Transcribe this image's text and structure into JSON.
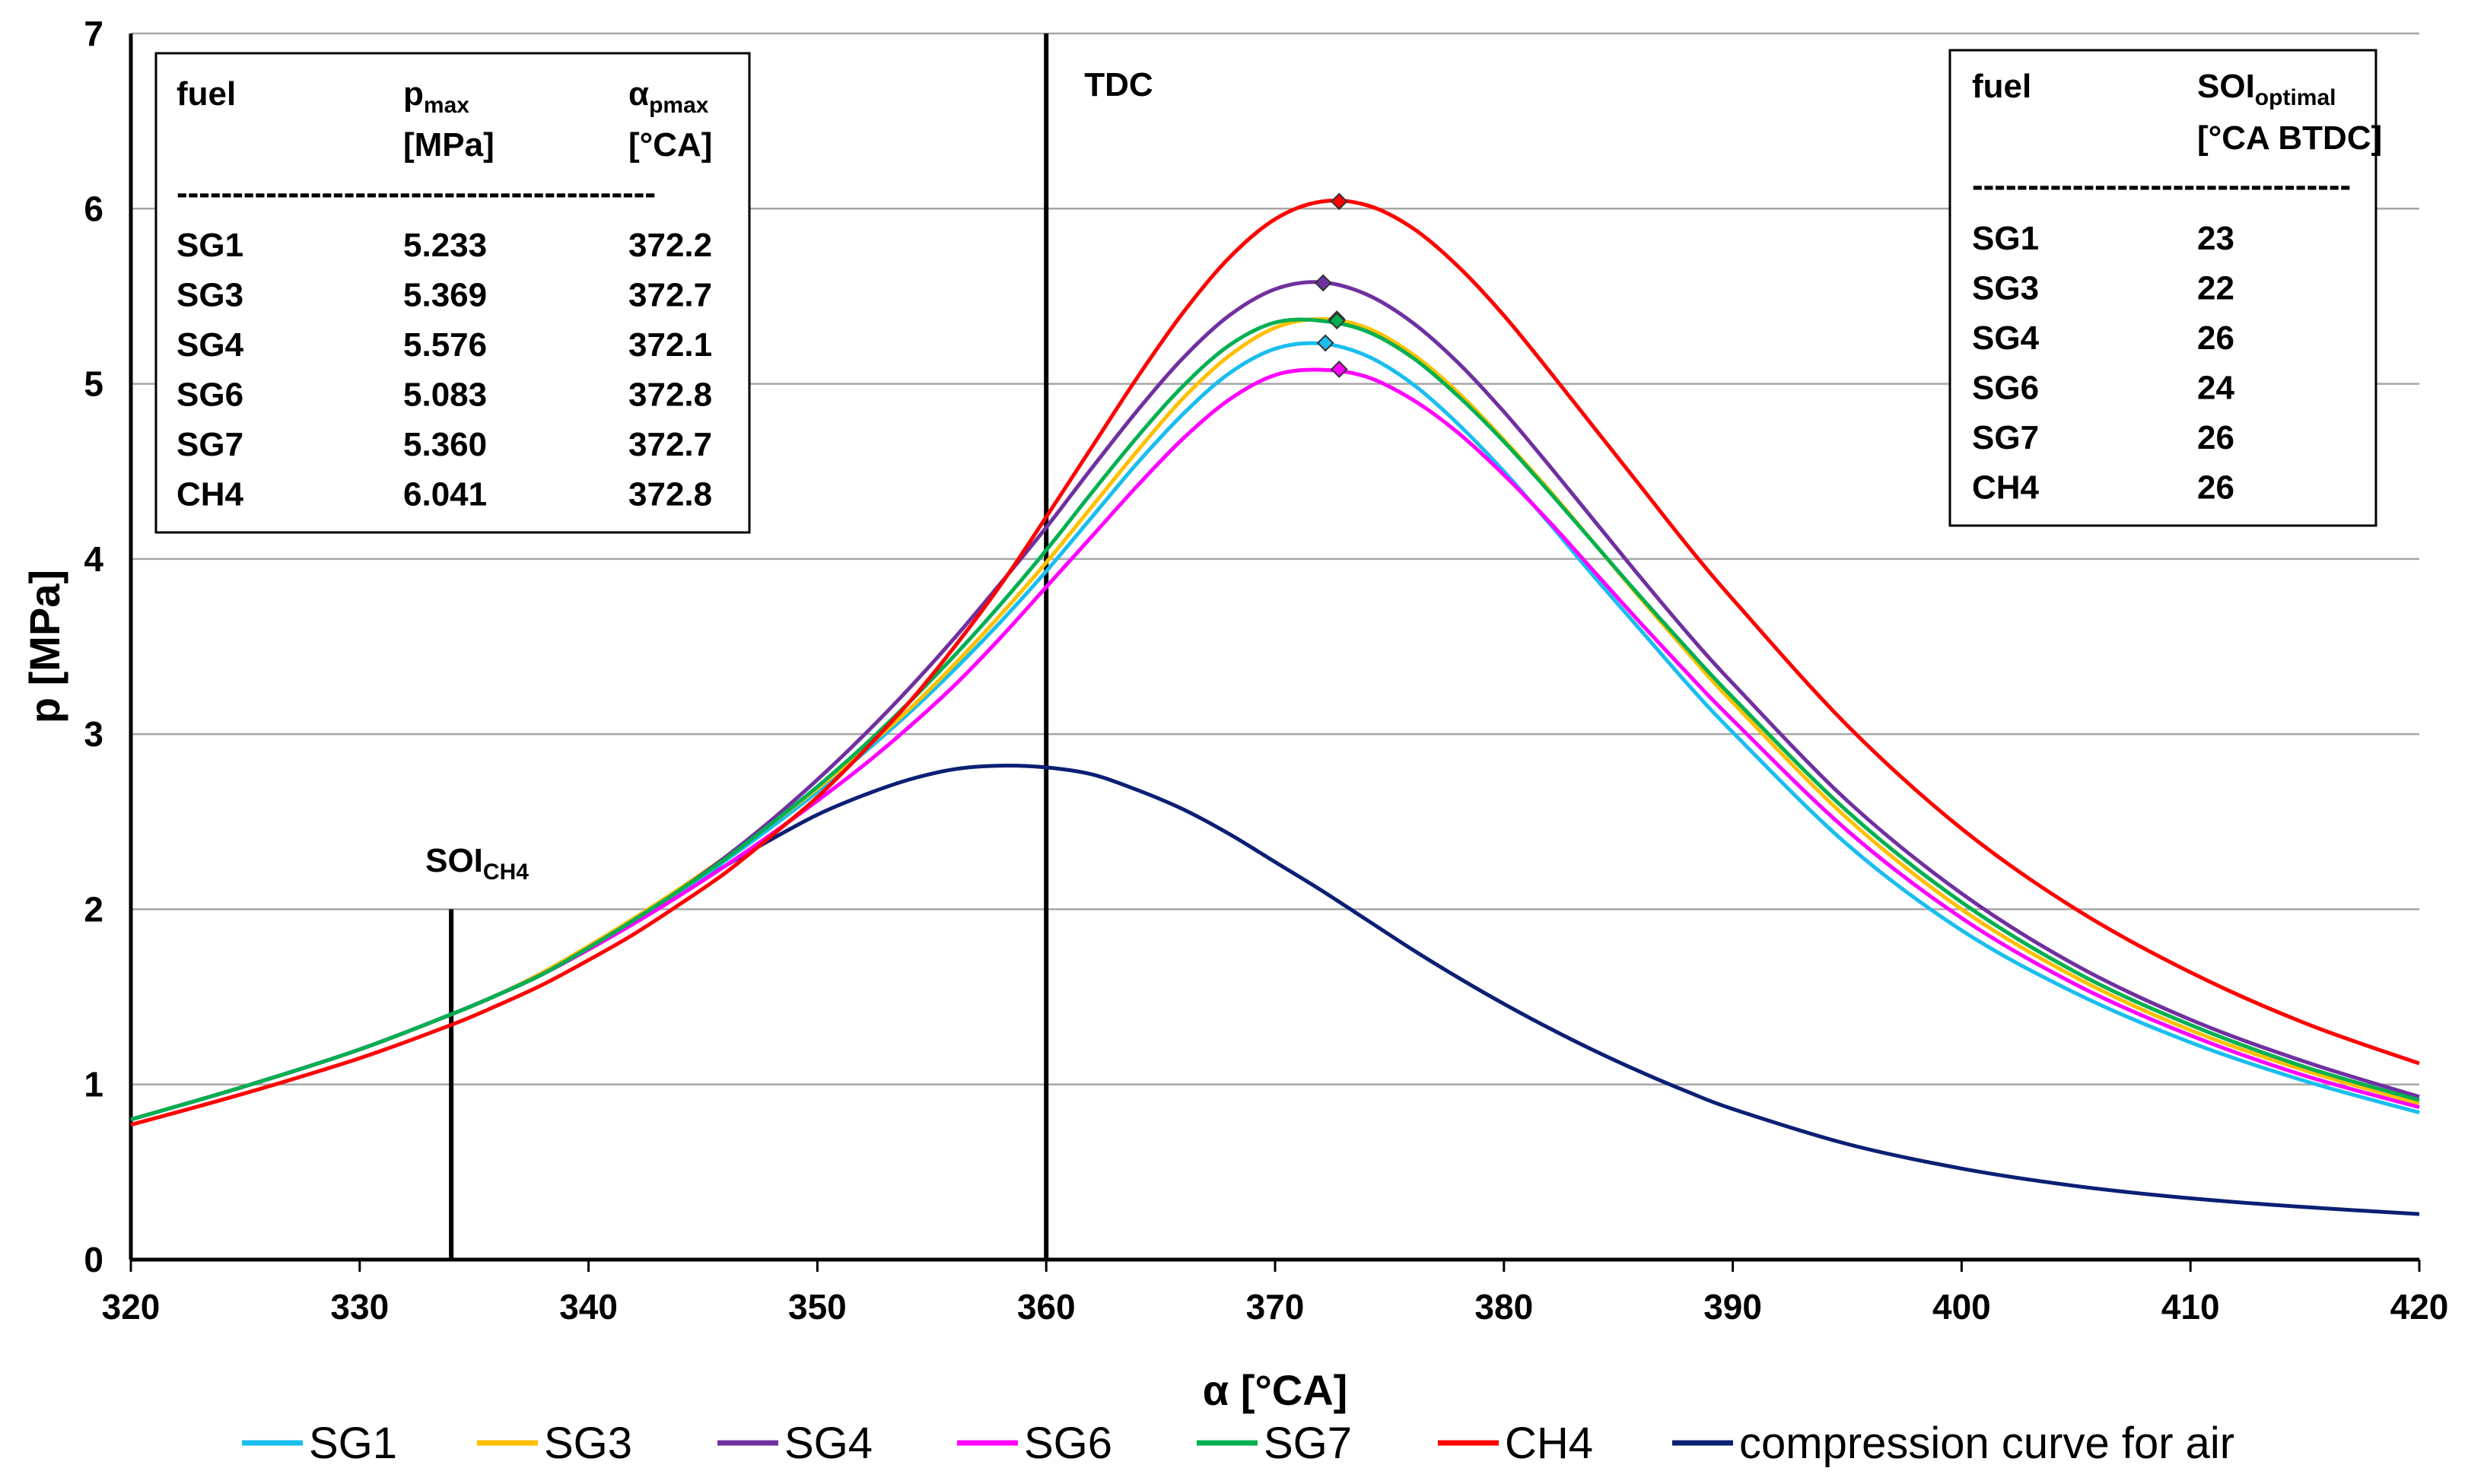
{
  "chart_data": {
    "type": "line",
    "xlabel": "α [°CA]",
    "ylabel": "p [MPa]",
    "xlim": [
      320,
      420
    ],
    "ylim": [
      0,
      7
    ],
    "xticks": [
      320,
      330,
      340,
      350,
      360,
      370,
      380,
      390,
      400,
      410,
      420
    ],
    "yticks": [
      0,
      1,
      2,
      3,
      4,
      5,
      6,
      7
    ],
    "grid": "horizontal",
    "x": [
      320,
      325,
      330,
      334,
      336,
      338,
      340,
      342,
      344,
      346,
      348,
      350,
      352,
      354,
      356,
      358,
      360,
      362,
      364,
      366,
      368,
      370,
      372,
      374,
      376,
      378,
      380,
      382,
      384,
      386,
      388,
      390,
      395,
      400,
      405,
      410,
      415,
      420
    ],
    "series": [
      {
        "name": "SG1",
        "color": "#19BEEF",
        "peak": {
          "x": 372.2,
          "y": 5.233
        },
        "values": [
          0.8,
          0.99,
          1.2,
          1.4,
          1.51,
          1.63,
          1.78,
          1.93,
          2.1,
          2.28,
          2.47,
          2.67,
          2.89,
          3.12,
          3.37,
          3.64,
          3.93,
          4.24,
          4.55,
          4.83,
          5.06,
          5.2,
          5.23,
          5.16,
          5.0,
          4.77,
          4.5,
          4.2,
          3.89,
          3.59,
          3.29,
          3.01,
          2.37,
          1.88,
          1.52,
          1.24,
          1.02,
          0.84
        ]
      },
      {
        "name": "SG3",
        "color": "#FFC000",
        "peak": {
          "x": 372.7,
          "y": 5.369
        },
        "values": [
          0.8,
          0.99,
          1.2,
          1.4,
          1.51,
          1.64,
          1.79,
          1.95,
          2.12,
          2.3,
          2.49,
          2.69,
          2.91,
          3.14,
          3.4,
          3.68,
          3.98,
          4.3,
          4.62,
          4.92,
          5.16,
          5.32,
          5.37,
          5.32,
          5.17,
          4.95,
          4.68,
          4.39,
          4.08,
          3.77,
          3.47,
          3.18,
          2.52,
          2.0,
          1.61,
          1.31,
          1.08,
          0.89
        ]
      },
      {
        "name": "SG4",
        "color": "#7030A0",
        "peak": {
          "x": 372.1,
          "y": 5.576
        },
        "values": [
          0.8,
          0.99,
          1.2,
          1.4,
          1.51,
          1.63,
          1.78,
          1.94,
          2.11,
          2.3,
          2.51,
          2.74,
          2.99,
          3.26,
          3.55,
          3.86,
          4.18,
          4.52,
          4.85,
          5.15,
          5.39,
          5.54,
          5.58,
          5.51,
          5.35,
          5.12,
          4.84,
          4.53,
          4.21,
          3.89,
          3.58,
          3.29,
          2.62,
          2.09,
          1.68,
          1.37,
          1.13,
          0.93
        ]
      },
      {
        "name": "SG6",
        "color": "#FF00FF",
        "peak": {
          "x": 372.8,
          "y": 5.083
        },
        "values": [
          0.8,
          0.99,
          1.2,
          1.4,
          1.51,
          1.63,
          1.77,
          1.92,
          2.08,
          2.25,
          2.43,
          2.62,
          2.82,
          3.04,
          3.28,
          3.55,
          3.84,
          4.13,
          4.42,
          4.69,
          4.91,
          5.05,
          5.08,
          5.04,
          4.91,
          4.72,
          4.48,
          4.21,
          3.92,
          3.63,
          3.35,
          3.08,
          2.45,
          1.95,
          1.57,
          1.28,
          1.05,
          0.87
        ]
      },
      {
        "name": "SG7",
        "color": "#00B050",
        "peak": {
          "x": 372.7,
          "y": 5.36
        },
        "values": [
          0.8,
          0.99,
          1.2,
          1.4,
          1.51,
          1.63,
          1.78,
          1.94,
          2.11,
          2.29,
          2.49,
          2.7,
          2.93,
          3.18,
          3.45,
          3.74,
          4.05,
          4.38,
          4.7,
          4.99,
          5.22,
          5.35,
          5.36,
          5.3,
          5.15,
          4.93,
          4.67,
          4.38,
          4.08,
          3.78,
          3.49,
          3.21,
          2.56,
          2.04,
          1.64,
          1.34,
          1.1,
          0.91
        ]
      },
      {
        "name": "CH4",
        "color": "#FF0000",
        "peak": {
          "x": 372.8,
          "y": 6.041
        },
        "values": [
          0.77,
          0.95,
          1.15,
          1.34,
          1.45,
          1.57,
          1.71,
          1.86,
          2.03,
          2.21,
          2.42,
          2.64,
          2.9,
          3.18,
          3.5,
          3.85,
          4.24,
          4.64,
          5.04,
          5.41,
          5.72,
          5.94,
          6.04,
          6.02,
          5.89,
          5.67,
          5.39,
          5.07,
          4.74,
          4.41,
          4.08,
          3.77,
          3.05,
          2.46,
          2.0,
          1.64,
          1.35,
          1.12
        ]
      },
      {
        "name": "compression curve for air",
        "color": "#0B1F74",
        "peak": null,
        "values": [
          0.8,
          0.99,
          1.2,
          1.4,
          1.51,
          1.63,
          1.78,
          1.93,
          2.09,
          2.25,
          2.4,
          2.54,
          2.65,
          2.74,
          2.8,
          2.82,
          2.81,
          2.77,
          2.68,
          2.57,
          2.43,
          2.27,
          2.11,
          1.94,
          1.77,
          1.61,
          1.46,
          1.32,
          1.19,
          1.07,
          0.96,
          0.86,
          0.66,
          0.52,
          0.42,
          0.35,
          0.3,
          0.26
        ]
      }
    ],
    "vlines": [
      {
        "x": 360,
        "label": "TDC"
      },
      {
        "x": 334,
        "y_top": 2.0,
        "label_main": "SOI",
        "label_sub": "CH4"
      }
    ],
    "table_left": {
      "headers": [
        {
          "main": "fuel",
          "sub": "",
          "line2": ""
        },
        {
          "main": "p",
          "sub": "max",
          "line2": "[MPa]"
        },
        {
          "main": "α",
          "sub": "pmax",
          "line2": "[°CA]"
        }
      ],
      "separator": "-------------------------------------------",
      "rows": [
        [
          "SG1",
          "5.233",
          "372.2"
        ],
        [
          "SG3",
          "5.369",
          "372.7"
        ],
        [
          "SG4",
          "5.576",
          "372.1"
        ],
        [
          "SG6",
          "5.083",
          "372.8"
        ],
        [
          "SG7",
          "5.360",
          "372.7"
        ],
        [
          "CH4",
          "6.041",
          "372.8"
        ]
      ]
    },
    "table_right": {
      "headers": [
        {
          "main": "fuel",
          "sub": "",
          "line2": ""
        },
        {
          "main": "SOI",
          "sub": "optimal",
          "line2": "[°CA BTDC]"
        }
      ],
      "separator": "----------------------------------",
      "rows": [
        [
          "SG1",
          "23"
        ],
        [
          "SG3",
          "22"
        ],
        [
          "SG4",
          "26"
        ],
        [
          "SG6",
          "24"
        ],
        [
          "SG7",
          "26"
        ],
        [
          "CH4",
          "26"
        ]
      ]
    }
  }
}
